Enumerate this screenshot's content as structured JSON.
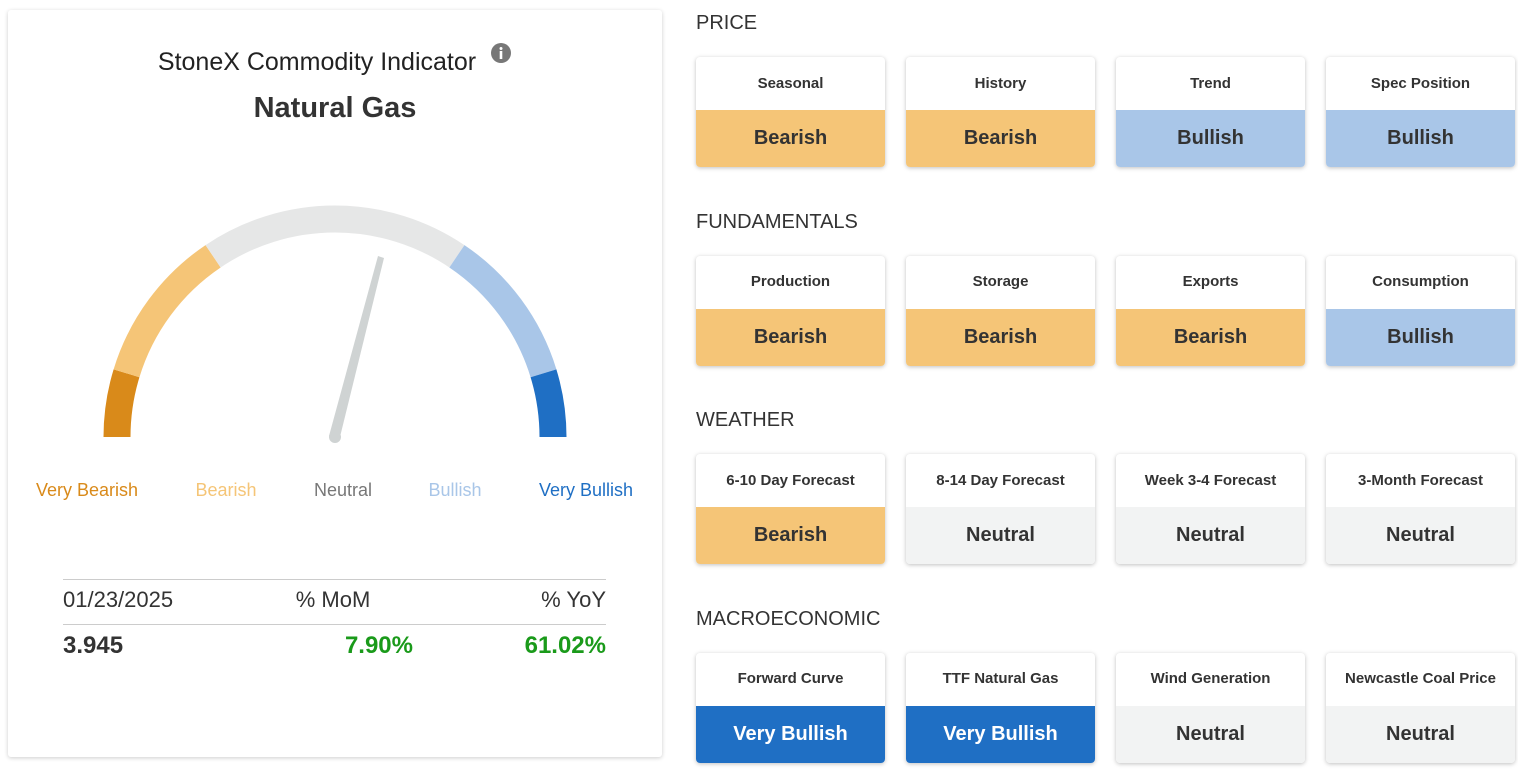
{
  "indicator": {
    "title": "StoneX Commodity Indicator",
    "commodity": "Natural Gas",
    "scale": [
      {
        "label": "Very Bearish",
        "color": "#d98a1a"
      },
      {
        "label": "Bearish",
        "color": "#f5c577"
      },
      {
        "label": "Neutral",
        "color": "#e6e7e7"
      },
      {
        "label": "Bullish",
        "color": "#a9c6e8"
      },
      {
        "label": "Very Bullish",
        "color": "#1f6fc4"
      }
    ],
    "table": {
      "header": [
        "01/23/2025",
        "% MoM",
        "% YoY"
      ],
      "row": [
        "3.945",
        "7.90%",
        "61.02%"
      ]
    }
  },
  "sections": [
    {
      "title": "PRICE",
      "cards": [
        {
          "label": "Seasonal",
          "signal": "Bearish",
          "color": "#f5c577"
        },
        {
          "label": "History",
          "signal": "Bearish",
          "color": "#f5c577"
        },
        {
          "label": "Trend",
          "signal": "Bullish",
          "color": "#a9c6e8"
        },
        {
          "label": "Spec Position",
          "signal": "Bullish",
          "color": "#a9c6e8"
        }
      ]
    },
    {
      "title": "FUNDAMENTALS",
      "cards": [
        {
          "label": "Production",
          "signal": "Bearish",
          "color": "#f5c577"
        },
        {
          "label": "Storage",
          "signal": "Bearish",
          "color": "#f5c577"
        },
        {
          "label": "Exports",
          "signal": "Bearish",
          "color": "#f5c577"
        },
        {
          "label": "Consumption",
          "signal": "Bullish",
          "color": "#a9c6e8"
        }
      ]
    },
    {
      "title": "WEATHER",
      "cards": [
        {
          "label": "6-10 Day Forecast",
          "signal": "Bearish",
          "color": "#f5c577"
        },
        {
          "label": "8-14 Day Forecast",
          "signal": "Neutral",
          "color": "#f2f3f3"
        },
        {
          "label": "Week 3-4 Forecast",
          "signal": "Neutral",
          "color": "#f2f3f3"
        },
        {
          "label": "3-Month Forecast",
          "signal": "Neutral",
          "color": "#f2f3f3"
        }
      ]
    },
    {
      "title": "MACROECONOMIC",
      "cards": [
        {
          "label": "Forward Curve",
          "signal": "Very Bullish",
          "color": "#1f6fc4"
        },
        {
          "label": "TTF Natural Gas",
          "signal": "Very Bullish",
          "color": "#1f6fc4"
        },
        {
          "label": "Wind Generation",
          "signal": "Neutral",
          "color": "#f2f3f3"
        },
        {
          "label": "Newcastle Coal Price",
          "signal": "Neutral",
          "color": "#f2f3f3"
        }
      ]
    }
  ]
}
